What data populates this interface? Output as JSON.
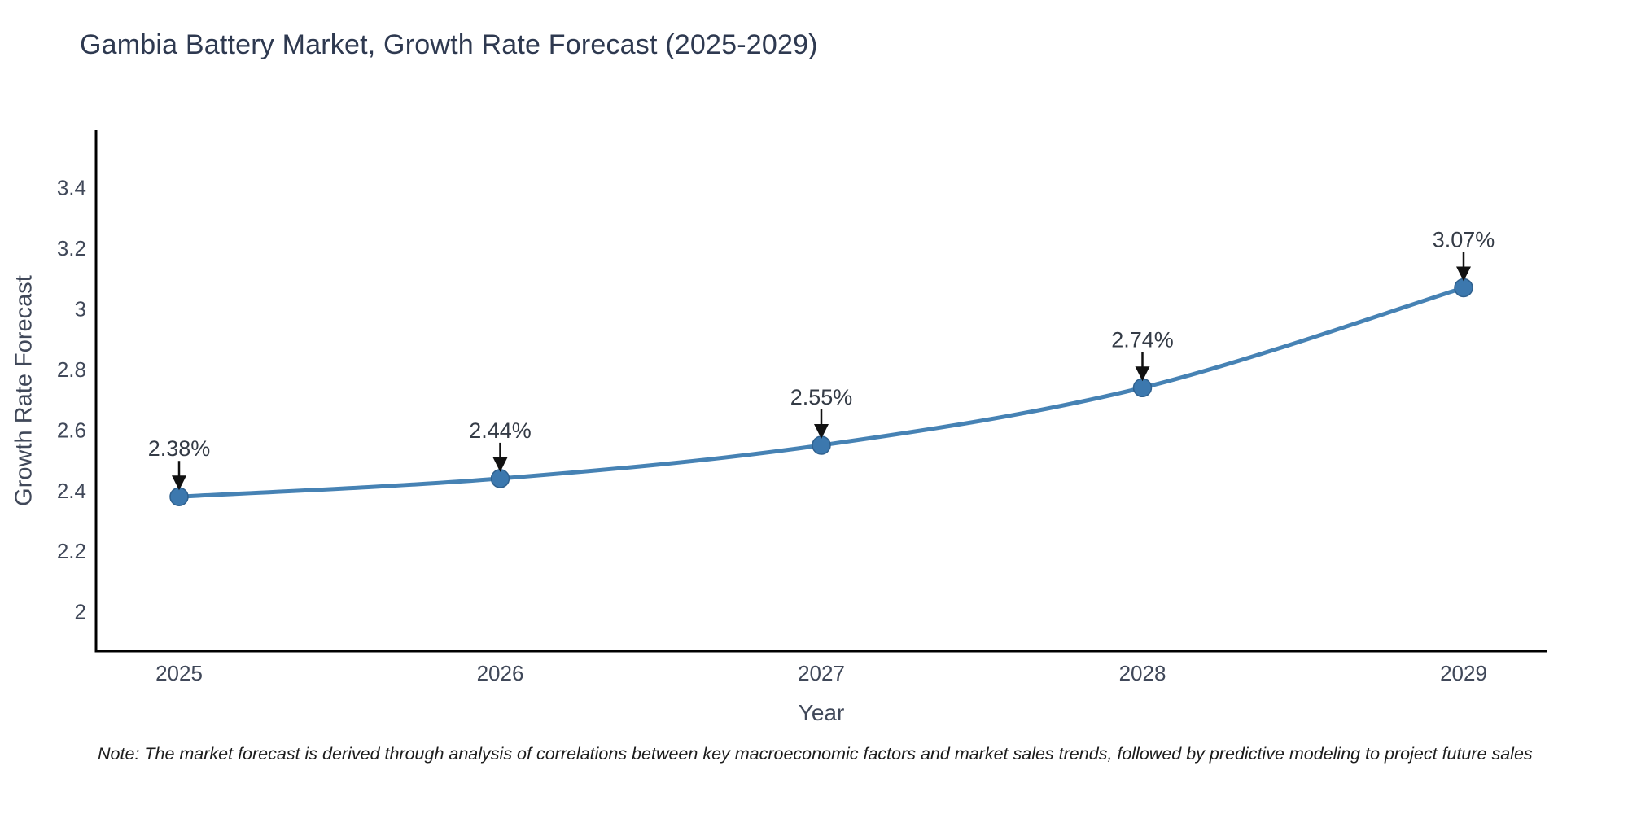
{
  "chart_data": {
    "type": "line",
    "title": "Gambia Battery Market, Growth Rate Forecast (2025-2029)",
    "xlabel": "Year",
    "ylabel": "Growth Rate Forecast",
    "categories": [
      "2025",
      "2026",
      "2027",
      "2028",
      "2029"
    ],
    "series": [
      {
        "name": "Growth Rate Forecast",
        "values": [
          2.38,
          2.44,
          2.55,
          2.74,
          3.07
        ],
        "point_labels": [
          "2.38%",
          "2.44%",
          "2.55%",
          "2.74%",
          "3.07%"
        ]
      }
    ],
    "yticks": [
      2,
      2.2,
      2.4,
      2.6,
      2.8,
      3,
      3.2,
      3.4
    ],
    "ylim": [
      1.87,
      3.59
    ],
    "grid": false,
    "legend_position": "none",
    "line_color": "#4682b4",
    "marker_color": "#3c78ae",
    "marker_edge_color": "#2f618f",
    "arrow_color": "#111111",
    "annotation_color": "#343b46",
    "axis_color": "#000000",
    "tick_color": "#404859",
    "title_color": "#2e3950"
  },
  "note": "Note: The market forecast is derived through analysis of correlations between key macroeconomic factors and market sales trends, followed by predictive modeling to project future sales"
}
